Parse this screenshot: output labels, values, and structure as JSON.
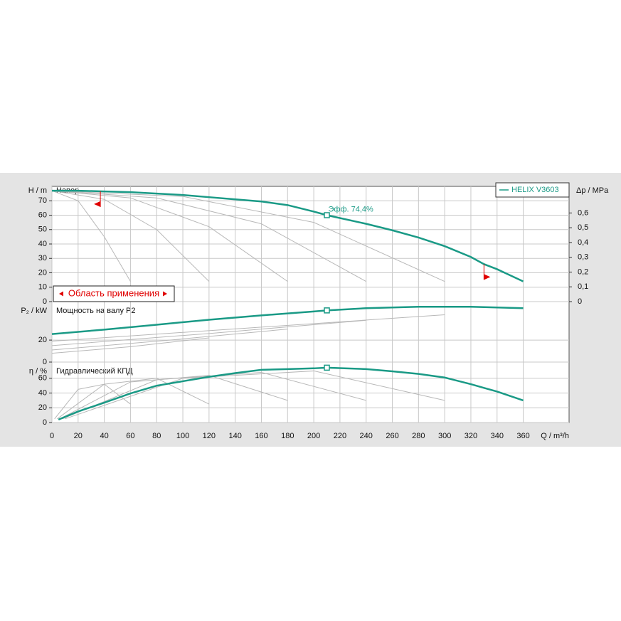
{
  "chart_data": [
    {
      "type": "line",
      "title": "Напор",
      "y_label": "H / m",
      "y2_label": "Δp / MPa",
      "x": [
        0,
        20,
        40,
        60,
        80,
        100,
        120,
        140,
        160,
        180,
        200,
        210,
        240,
        260,
        280,
        300,
        320,
        330,
        340,
        360
      ],
      "series": [
        {
          "name": "HELIX V3603",
          "color": "#1a9a86",
          "values": [
            77,
            77,
            76.5,
            76,
            75,
            74,
            72.5,
            71,
            69.5,
            67,
            62.5,
            60,
            54,
            49.5,
            44.5,
            38.5,
            31,
            26,
            22.5,
            14
          ]
        }
      ],
      "reference_curves": [
        {
          "x": [
            0,
            20,
            40,
            60
          ],
          "values": [
            77,
            70,
            45,
            14
          ]
        },
        {
          "x": [
            0,
            40,
            80,
            120
          ],
          "values": [
            77,
            71,
            50,
            14
          ]
        },
        {
          "x": [
            0,
            60,
            120,
            180
          ],
          "values": [
            77,
            72,
            52,
            14
          ]
        },
        {
          "x": [
            0,
            80,
            160,
            240
          ],
          "values": [
            77,
            72,
            54,
            14
          ]
        },
        {
          "x": [
            0,
            100,
            200,
            300
          ],
          "values": [
            77,
            73,
            55,
            14
          ]
        }
      ],
      "reference_color": "#b8b8b8",
      "xlim": [
        0,
        395
      ],
      "ylim": [
        0,
        80
      ],
      "yticks": [
        0,
        10,
        20,
        30,
        40,
        50,
        60,
        70
      ],
      "y2lim": [
        0,
        0.78
      ],
      "y2ticks": [
        0,
        {
          "value": 0.1,
          "label": "0,1"
        },
        {
          "value": 0.2,
          "label": "0,2"
        },
        {
          "value": 0.3,
          "label": "0,3"
        },
        {
          "value": 0.4,
          "label": "0,4"
        },
        {
          "value": 0.5,
          "label": "0,5"
        },
        {
          "value": 0.6,
          "label": "0,6"
        }
      ],
      "grid": true,
      "legend": "upper right",
      "duty_point": {
        "x": 210,
        "y": 60
      },
      "annotation": "Эфф.  74,4%",
      "operating_range": {
        "label": "Область применения",
        "x": [
          37,
          330
        ],
        "color": "#e00000"
      }
    },
    {
      "type": "line",
      "title": "Мощность на валу P2",
      "y_label": "P₂ / kW",
      "x": [
        0,
        40,
        80,
        120,
        160,
        200,
        210,
        240,
        280,
        320,
        360
      ],
      "series": [
        {
          "name": "HELIX V3603",
          "color": "#1a9a86",
          "values": [
            25.5,
            29.5,
            34,
            38.5,
            42.5,
            46,
            47,
            49,
            50.3,
            50.3,
            49
          ]
        }
      ],
      "reference_curves": [
        {
          "x": [
            0,
            60,
            120
          ],
          "values": [
            8,
            14,
            22
          ]
        },
        {
          "x": [
            0,
            90,
            180
          ],
          "values": [
            11,
            20,
            30
          ]
        },
        {
          "x": [
            0,
            120,
            240
          ],
          "values": [
            15,
            26,
            38
          ]
        },
        {
          "x": [
            0,
            150,
            300
          ],
          "values": [
            19,
            31,
            43
          ]
        }
      ],
      "reference_color": "#b8b8b8",
      "xlim": [
        0,
        395
      ],
      "ylim": [
        0,
        55
      ],
      "yticks": [
        0,
        20
      ],
      "grid": true,
      "duty_point": {
        "x": 210,
        "y": 47
      }
    },
    {
      "type": "line",
      "title": "Гидравлический КПД",
      "y_label": "η / %",
      "x_label": "Q / m³/h",
      "x": [
        5,
        20,
        40,
        60,
        80,
        100,
        120,
        140,
        160,
        180,
        200,
        210,
        240,
        260,
        280,
        300,
        320,
        330,
        340,
        360
      ],
      "series": [
        {
          "name": "HELIX V3603",
          "color": "#1a9a86",
          "values": [
            4,
            15,
            27,
            39.5,
            50,
            56,
            62,
            67,
            71.5,
            72.5,
            73.5,
            74.4,
            72.5,
            69.5,
            66,
            61,
            52,
            47,
            42,
            30
          ]
        }
      ],
      "reference_curves": [
        {
          "x": [
            2,
            20,
            40,
            60
          ],
          "values": [
            5,
            45,
            52,
            25
          ]
        },
        {
          "x": [
            4,
            40,
            80,
            120
          ],
          "values": [
            5,
            52,
            60,
            25
          ]
        },
        {
          "x": [
            6,
            60,
            120,
            180
          ],
          "values": [
            5,
            55,
            64,
            30
          ]
        },
        {
          "x": [
            8,
            80,
            160,
            240
          ],
          "values": [
            5,
            58,
            68,
            30
          ]
        },
        {
          "x": [
            10,
            100,
            200,
            300
          ],
          "values": [
            5,
            60,
            70,
            30
          ]
        }
      ],
      "reference_color": "#b8b8b8",
      "xlim": [
        0,
        395
      ],
      "ylim": [
        0,
        82
      ],
      "yticks": [
        0,
        20,
        40,
        60
      ],
      "xticks": [
        0,
        20,
        40,
        60,
        80,
        100,
        120,
        140,
        160,
        180,
        200,
        220,
        240,
        260,
        280,
        300,
        320,
        340,
        360
      ],
      "grid": true,
      "duty_point": {
        "x": 210,
        "y": 74.4
      }
    }
  ]
}
